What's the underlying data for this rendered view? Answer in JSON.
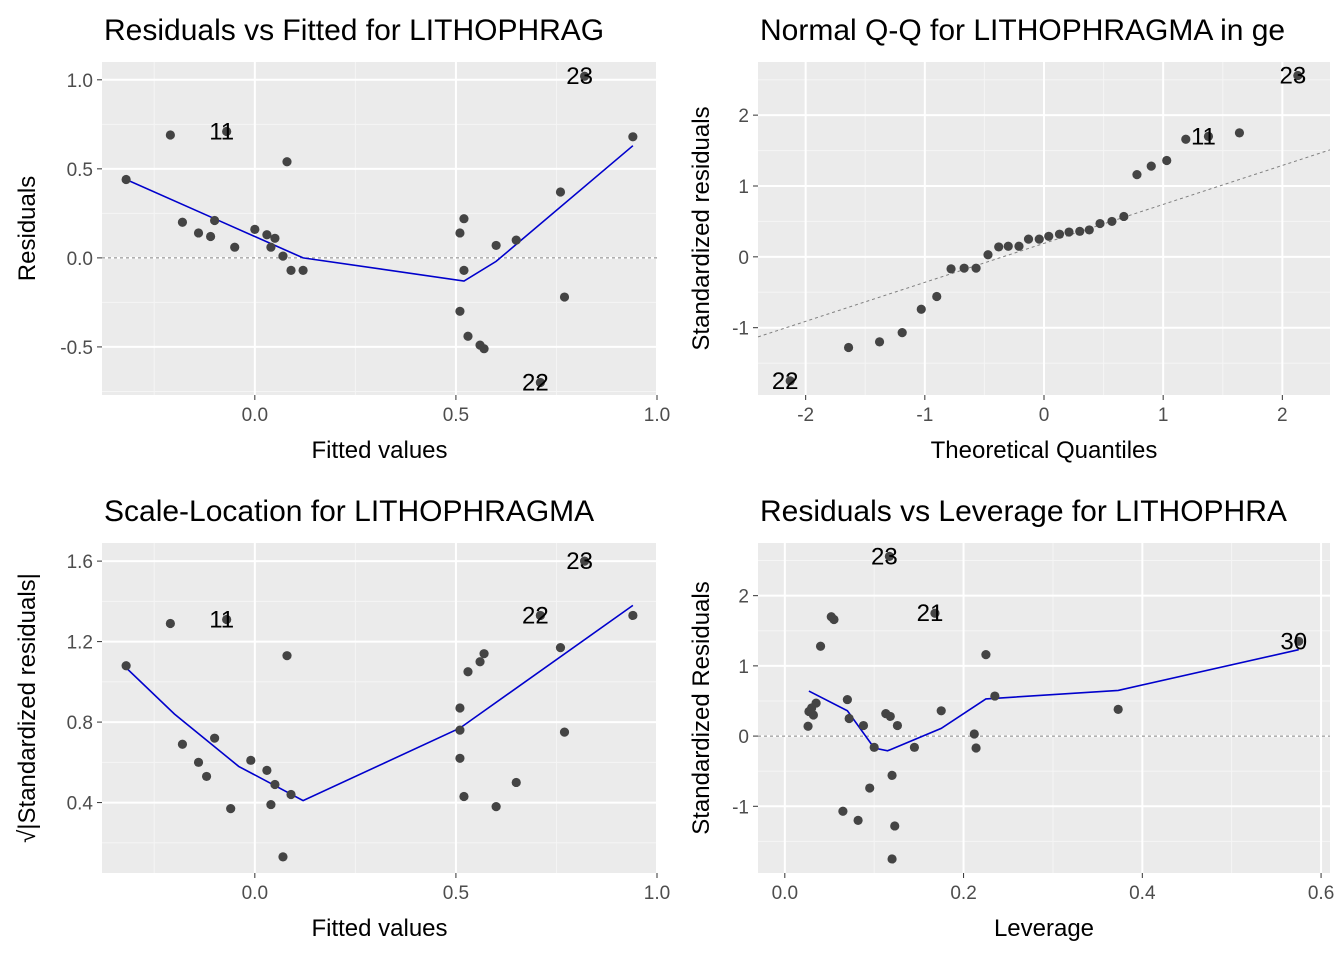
{
  "chart_data": [
    {
      "type": "scatter",
      "title": "Residuals vs Fitted for LITHOPHRAG",
      "xlabel": "Fitted values",
      "ylabel": "Residuals",
      "xlim": [
        -0.38,
        1.0
      ],
      "ylim": [
        -0.77,
        1.1
      ],
      "xticks": [
        0.0,
        0.5,
        1.0
      ],
      "xtick_labels": [
        "0.0",
        "0.5",
        "1.0"
      ],
      "yticks": [
        -0.5,
        0.0,
        0.5,
        1.0
      ],
      "ytick_labels": [
        "-0.5",
        "0.0",
        "0.5",
        "1.0"
      ],
      "grid": true,
      "reference_line": {
        "type": "horizontal",
        "value": 0,
        "style": "dashed"
      },
      "points": [
        {
          "x": -0.32,
          "y": 0.44
        },
        {
          "x": -0.21,
          "y": 0.69
        },
        {
          "x": -0.18,
          "y": 0.2
        },
        {
          "x": -0.14,
          "y": 0.14
        },
        {
          "x": -0.11,
          "y": 0.12
        },
        {
          "x": -0.1,
          "y": 0.21
        },
        {
          "x": -0.07,
          "y": 0.71
        },
        {
          "x": -0.05,
          "y": 0.06
        },
        {
          "x": 0.0,
          "y": 0.16
        },
        {
          "x": 0.03,
          "y": 0.13
        },
        {
          "x": 0.04,
          "y": 0.06
        },
        {
          "x": 0.05,
          "y": 0.11
        },
        {
          "x": 0.07,
          "y": 0.01
        },
        {
          "x": 0.08,
          "y": 0.54
        },
        {
          "x": 0.09,
          "y": -0.07
        },
        {
          "x": 0.12,
          "y": -0.07
        },
        {
          "x": 0.51,
          "y": 0.14
        },
        {
          "x": 0.51,
          "y": -0.3
        },
        {
          "x": 0.52,
          "y": 0.22
        },
        {
          "x": 0.52,
          "y": -0.07
        },
        {
          "x": 0.53,
          "y": -0.44
        },
        {
          "x": 0.56,
          "y": -0.49
        },
        {
          "x": 0.57,
          "y": -0.51
        },
        {
          "x": 0.6,
          "y": 0.07
        },
        {
          "x": 0.65,
          "y": 0.1
        },
        {
          "x": 0.71,
          "y": -0.7
        },
        {
          "x": 0.76,
          "y": 0.37
        },
        {
          "x": 0.77,
          "y": -0.22
        },
        {
          "x": 0.82,
          "y": 1.02
        },
        {
          "x": 0.94,
          "y": 0.68
        }
      ],
      "smooth_line": [
        {
          "x": -0.32,
          "y": 0.44
        },
        {
          "x": -0.1,
          "y": 0.22
        },
        {
          "x": 0.12,
          "y": 0.0
        },
        {
          "x": 0.52,
          "y": -0.13
        },
        {
          "x": 0.6,
          "y": -0.02
        },
        {
          "x": 0.94,
          "y": 0.63
        }
      ],
      "point_labels": [
        {
          "text": "11",
          "x": -0.07,
          "y": 0.71
        },
        {
          "text": "23",
          "x": 0.82,
          "y": 1.02
        },
        {
          "text": "22",
          "x": 0.71,
          "y": -0.7
        }
      ]
    },
    {
      "type": "scatter",
      "title": "Normal Q-Q for LITHOPHRAGMA in ge",
      "xlabel": "Theoretical Quantiles",
      "ylabel": "Standardized residuals",
      "xlim": [
        -2.4,
        2.4
      ],
      "ylim": [
        -1.95,
        2.75
      ],
      "xticks": [
        -2,
        -1,
        0,
        1,
        2
      ],
      "xtick_labels": [
        "-2",
        "-1",
        "0",
        "1",
        "2"
      ],
      "yticks": [
        -1,
        0,
        1,
        2
      ],
      "ytick_labels": [
        "-1",
        "0",
        "1",
        "2"
      ],
      "grid": true,
      "reference_line": {
        "type": "diagonal",
        "intercept": 0.19,
        "slope": 0.55,
        "style": "dashed"
      },
      "points": [
        {
          "x": -2.13,
          "y": -1.75
        },
        {
          "x": -1.64,
          "y": -1.28
        },
        {
          "x": -1.38,
          "y": -1.2
        },
        {
          "x": -1.19,
          "y": -1.07
        },
        {
          "x": -1.03,
          "y": -0.74
        },
        {
          "x": -0.9,
          "y": -0.56
        },
        {
          "x": -0.78,
          "y": -0.17
        },
        {
          "x": -0.67,
          "y": -0.16
        },
        {
          "x": -0.57,
          "y": -0.16
        },
        {
          "x": -0.47,
          "y": 0.03
        },
        {
          "x": -0.38,
          "y": 0.14
        },
        {
          "x": -0.3,
          "y": 0.15
        },
        {
          "x": -0.21,
          "y": 0.15
        },
        {
          "x": -0.13,
          "y": 0.25
        },
        {
          "x": -0.04,
          "y": 0.25
        },
        {
          "x": 0.04,
          "y": 0.29
        },
        {
          "x": 0.13,
          "y": 0.32
        },
        {
          "x": 0.21,
          "y": 0.35
        },
        {
          "x": 0.3,
          "y": 0.36
        },
        {
          "x": 0.38,
          "y": 0.38
        },
        {
          "x": 0.47,
          "y": 0.47
        },
        {
          "x": 0.57,
          "y": 0.5
        },
        {
          "x": 0.67,
          "y": 0.57
        },
        {
          "x": 0.78,
          "y": 1.16
        },
        {
          "x": 0.9,
          "y": 1.28
        },
        {
          "x": 1.03,
          "y": 1.36
        },
        {
          "x": 1.19,
          "y": 1.66
        },
        {
          "x": 1.38,
          "y": 1.7
        },
        {
          "x": 1.64,
          "y": 1.75
        },
        {
          "x": 2.13,
          "y": 2.56
        }
      ],
      "point_labels": [
        {
          "text": "23",
          "x": 2.13,
          "y": 2.56
        },
        {
          "text": "11",
          "x": 1.38,
          "y": 1.7
        },
        {
          "text": "22",
          "x": -2.13,
          "y": -1.75
        }
      ]
    },
    {
      "type": "scatter",
      "title": "Scale-Location for LITHOPHRAGMA",
      "xlabel": "Fitted values",
      "ylabel": "√|Standardized residuals|",
      "xlim": [
        -0.38,
        1.0
      ],
      "ylim": [
        0.05,
        1.69
      ],
      "xticks": [
        0.0,
        0.5,
        1.0
      ],
      "xtick_labels": [
        "0.0",
        "0.5",
        "1.0"
      ],
      "yticks": [
        0.4,
        0.8,
        1.2,
        1.6
      ],
      "ytick_labels": [
        "0.4",
        "0.8",
        "1.2",
        "1.6"
      ],
      "grid": true,
      "points": [
        {
          "x": -0.32,
          "y": 1.08
        },
        {
          "x": -0.21,
          "y": 1.29
        },
        {
          "x": -0.18,
          "y": 0.69
        },
        {
          "x": -0.14,
          "y": 0.6
        },
        {
          "x": -0.12,
          "y": 0.53
        },
        {
          "x": -0.1,
          "y": 0.72
        },
        {
          "x": -0.07,
          "y": 1.31
        },
        {
          "x": -0.06,
          "y": 0.37
        },
        {
          "x": -0.01,
          "y": 0.61
        },
        {
          "x": 0.03,
          "y": 0.56
        },
        {
          "x": 0.04,
          "y": 0.39
        },
        {
          "x": 0.05,
          "y": 0.49
        },
        {
          "x": 0.07,
          "y": 0.13
        },
        {
          "x": 0.08,
          "y": 1.13
        },
        {
          "x": 0.09,
          "y": 0.44
        },
        {
          "x": 0.51,
          "y": 0.62
        },
        {
          "x": 0.51,
          "y": 0.87
        },
        {
          "x": 0.51,
          "y": 0.76
        },
        {
          "x": 0.52,
          "y": 0.43
        },
        {
          "x": 0.53,
          "y": 1.05
        },
        {
          "x": 0.56,
          "y": 1.1
        },
        {
          "x": 0.57,
          "y": 1.14
        },
        {
          "x": 0.6,
          "y": 0.38
        },
        {
          "x": 0.65,
          "y": 0.5
        },
        {
          "x": 0.71,
          "y": 1.33
        },
        {
          "x": 0.76,
          "y": 1.17
        },
        {
          "x": 0.77,
          "y": 0.75
        },
        {
          "x": 0.82,
          "y": 1.6
        },
        {
          "x": 0.94,
          "y": 1.33
        }
      ],
      "smooth_line": [
        {
          "x": -0.32,
          "y": 1.07
        },
        {
          "x": -0.2,
          "y": 0.84
        },
        {
          "x": -0.04,
          "y": 0.58
        },
        {
          "x": 0.12,
          "y": 0.41
        },
        {
          "x": 0.51,
          "y": 0.77
        },
        {
          "x": 0.94,
          "y": 1.38
        }
      ],
      "point_labels": [
        {
          "text": "11",
          "x": -0.07,
          "y": 1.31
        },
        {
          "text": "23",
          "x": 0.82,
          "y": 1.6
        },
        {
          "text": "22",
          "x": 0.71,
          "y": 1.33
        }
      ]
    },
    {
      "type": "scatter",
      "title": "Residuals vs Leverage for LITHOPHRA",
      "xlabel": "Leverage",
      "ylabel": "Standardized Residuals",
      "xlim": [
        -0.03,
        0.61
      ],
      "ylim": [
        -1.95,
        2.75
      ],
      "xticks": [
        0.0,
        0.2,
        0.4,
        0.6
      ],
      "xtick_labels": [
        "0.0",
        "0.2",
        "0.4",
        "0.6"
      ],
      "yticks": [
        -1,
        0,
        1,
        2
      ],
      "ytick_labels": [
        "-1",
        "0",
        "1",
        "2"
      ],
      "grid": true,
      "reference_line": {
        "type": "horizontal",
        "value": 0,
        "style": "dashed"
      },
      "points": [
        {
          "x": 0.026,
          "y": 0.14
        },
        {
          "x": 0.027,
          "y": 0.35
        },
        {
          "x": 0.03,
          "y": 0.4
        },
        {
          "x": 0.032,
          "y": 0.3
        },
        {
          "x": 0.035,
          "y": 0.47
        },
        {
          "x": 0.04,
          "y": 1.28
        },
        {
          "x": 0.052,
          "y": 1.7
        },
        {
          "x": 0.055,
          "y": 1.66
        },
        {
          "x": 0.065,
          "y": -1.07
        },
        {
          "x": 0.07,
          "y": 0.52
        },
        {
          "x": 0.072,
          "y": 0.25
        },
        {
          "x": 0.082,
          "y": -1.2
        },
        {
          "x": 0.088,
          "y": 0.15
        },
        {
          "x": 0.095,
          "y": -0.74
        },
        {
          "x": 0.1,
          "y": -0.16
        },
        {
          "x": 0.113,
          "y": 0.32
        },
        {
          "x": 0.117,
          "y": 2.56
        },
        {
          "x": 0.118,
          "y": 0.28
        },
        {
          "x": 0.12,
          "y": -0.56
        },
        {
          "x": 0.12,
          "y": -1.75
        },
        {
          "x": 0.123,
          "y": -1.28
        },
        {
          "x": 0.126,
          "y": 0.15
        },
        {
          "x": 0.145,
          "y": -0.16
        },
        {
          "x": 0.168,
          "y": 1.75
        },
        {
          "x": 0.175,
          "y": 0.36
        },
        {
          "x": 0.212,
          "y": 0.03
        },
        {
          "x": 0.214,
          "y": -0.17
        },
        {
          "x": 0.225,
          "y": 1.16
        },
        {
          "x": 0.235,
          "y": 0.57
        },
        {
          "x": 0.373,
          "y": 0.38
        },
        {
          "x": 0.575,
          "y": 1.35
        }
      ],
      "smooth_line": [
        {
          "x": 0.027,
          "y": 0.64
        },
        {
          "x": 0.07,
          "y": 0.36
        },
        {
          "x": 0.1,
          "y": -0.17
        },
        {
          "x": 0.115,
          "y": -0.21
        },
        {
          "x": 0.175,
          "y": 0.11
        },
        {
          "x": 0.225,
          "y": 0.53
        },
        {
          "x": 0.373,
          "y": 0.65
        },
        {
          "x": 0.575,
          "y": 1.23
        }
      ],
      "point_labels": [
        {
          "text": "23",
          "x": 0.117,
          "y": 2.56
        },
        {
          "text": "21",
          "x": 0.168,
          "y": 1.75
        },
        {
          "text": "30",
          "x": 0.575,
          "y": 1.35
        }
      ]
    }
  ],
  "colors": {
    "panel_background": "#ebebeb",
    "grid_major": "#ffffff",
    "grid_minor": "#f5f5f5",
    "point": "#444444",
    "smooth_line": "#0000cc",
    "reference_line": "#808080",
    "tick_text": "#4d4d4d"
  }
}
